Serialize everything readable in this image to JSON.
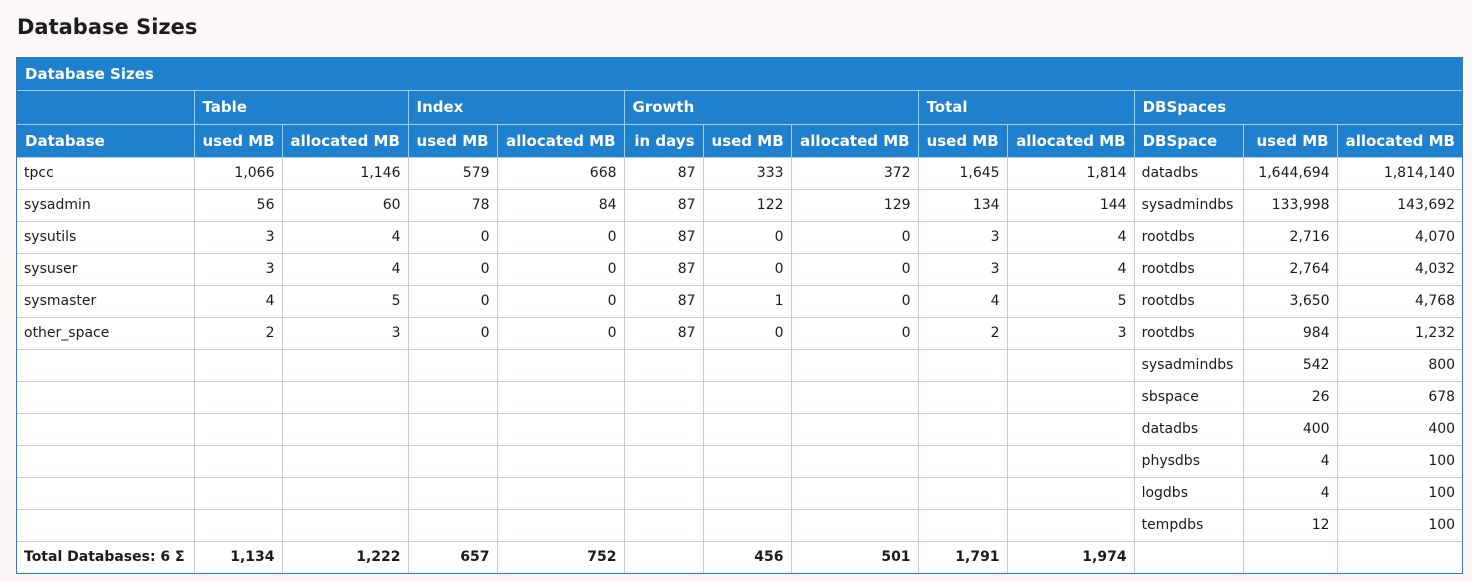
{
  "page": {
    "title": "Database Sizes"
  },
  "panel": {
    "title": "Database Sizes"
  },
  "header": {
    "groups": [
      "",
      "Table",
      "Index",
      "Growth",
      "Total",
      "DBSpaces"
    ],
    "columns": [
      "Database",
      "used MB",
      "allocated MB",
      "used MB",
      "allocated MB",
      "in days",
      "used MB",
      "allocated MB",
      "used MB",
      "allocated MB",
      "DBSpace",
      "used MB",
      "allocated MB"
    ]
  },
  "rows": [
    [
      "tpcc",
      "1,066",
      "1,146",
      "579",
      "668",
      "87",
      "333",
      "372",
      "1,645",
      "1,814",
      "datadbs",
      "1,644,694",
      "1,814,140"
    ],
    [
      "sysadmin",
      "56",
      "60",
      "78",
      "84",
      "87",
      "122",
      "129",
      "134",
      "144",
      "sysadmindbs",
      "133,998",
      "143,692"
    ],
    [
      "sysutils",
      "3",
      "4",
      "0",
      "0",
      "87",
      "0",
      "0",
      "3",
      "4",
      "rootdbs",
      "2,716",
      "4,070"
    ],
    [
      "sysuser",
      "3",
      "4",
      "0",
      "0",
      "87",
      "0",
      "0",
      "3",
      "4",
      "rootdbs",
      "2,764",
      "4,032"
    ],
    [
      "sysmaster",
      "4",
      "5",
      "0",
      "0",
      "87",
      "1",
      "0",
      "4",
      "5",
      "rootdbs",
      "3,650",
      "4,768"
    ],
    [
      "other_space",
      "2",
      "3",
      "0",
      "0",
      "87",
      "0",
      "0",
      "2",
      "3",
      "rootdbs",
      "984",
      "1,232"
    ],
    [
      "",
      "",
      "",
      "",
      "",
      "",
      "",
      "",
      "",
      "",
      "sysadmindbs",
      "542",
      "800"
    ],
    [
      "",
      "",
      "",
      "",
      "",
      "",
      "",
      "",
      "",
      "",
      "sbspace",
      "26",
      "678"
    ],
    [
      "",
      "",
      "",
      "",
      "",
      "",
      "",
      "",
      "",
      "",
      "datadbs",
      "400",
      "400"
    ],
    [
      "",
      "",
      "",
      "",
      "",
      "",
      "",
      "",
      "",
      "",
      "physdbs",
      "4",
      "100"
    ],
    [
      "",
      "",
      "",
      "",
      "",
      "",
      "",
      "",
      "",
      "",
      "logdbs",
      "4",
      "100"
    ],
    [
      "",
      "",
      "",
      "",
      "",
      "",
      "",
      "",
      "",
      "",
      "tempdbs",
      "12",
      "100"
    ]
  ],
  "footer": [
    "Total Databases: 6 Σ",
    "1,134",
    "1,222",
    "657",
    "752",
    "",
    "456",
    "501",
    "1,791",
    "1,974",
    "",
    "",
    ""
  ]
}
